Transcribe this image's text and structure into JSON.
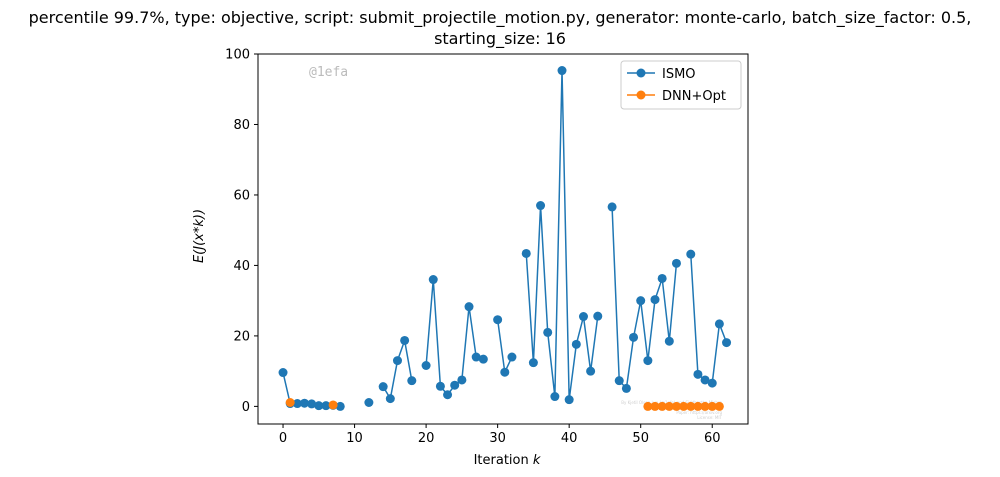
{
  "chart_data": {
    "type": "line",
    "title_line1": "percentile 99.7%, type: objective, script: submit_projectile_motion.py, generator: monte-carlo, batch_size_factor: 0.5,",
    "title_line2": "starting_size: 16",
    "xlabel": "Iteration k",
    "ylabel": "E(J(x*k))",
    "xlim": [
      -3.5,
      65
    ],
    "ylim": [
      -5,
      100
    ],
    "xticks": [
      0,
      10,
      20,
      30,
      40,
      50,
      60
    ],
    "yticks": [
      0,
      20,
      40,
      60,
      80,
      100
    ],
    "legend_position": "top-right",
    "watermark": "@1efa",
    "fineprint": [
      "By Kjetil Olsen Lye (@1efa) and Siddhartha Mishra",
      "Email: kjetil.lye@sam.math.ethz.ch",
      "Paper: https://arxiv.org",
      "License: MIT"
    ],
    "series": [
      {
        "name": "ISMO",
        "color": "#1f77b4",
        "segments": [
          {
            "x": [
              0,
              1,
              2,
              3,
              4,
              5,
              6,
              7,
              8
            ],
            "y": [
              9.6,
              0.8,
              0.8,
              0.9,
              0.7,
              0.2,
              0.2,
              0.3,
              0.0
            ]
          },
          {
            "x": [
              12
            ],
            "y": [
              1.1
            ]
          },
          {
            "x": [
              14,
              15,
              16,
              17,
              18
            ],
            "y": [
              5.6,
              2.2,
              13.0,
              18.7,
              7.3
            ]
          },
          {
            "x": [
              20,
              21,
              22,
              23,
              24,
              25,
              26,
              27,
              28
            ],
            "y": [
              11.6,
              36.0,
              5.7,
              3.3,
              6.0,
              7.5,
              28.3,
              14.0,
              13.4
            ]
          },
          {
            "x": [
              30,
              31,
              32
            ],
            "y": [
              24.6,
              9.7,
              14.0
            ]
          },
          {
            "x": [
              34,
              35,
              36,
              37,
              38,
              39,
              40,
              41,
              42,
              43,
              44
            ],
            "y": [
              43.4,
              12.4,
              57.0,
              21.0,
              2.8,
              95.3,
              1.9,
              17.6,
              25.5,
              10.0,
              25.6
            ]
          },
          {
            "x": [
              46,
              47,
              48,
              49,
              50,
              51,
              52,
              53,
              54,
              55
            ],
            "y": [
              56.6,
              7.3,
              5.1,
              19.6,
              30.0,
              13.0,
              30.3,
              36.3,
              18.5,
              40.6
            ]
          },
          {
            "x": [
              57,
              58,
              59,
              60,
              61,
              62
            ],
            "y": [
              43.2,
              9.1,
              7.5,
              6.6,
              23.4,
              18.1
            ]
          }
        ]
      },
      {
        "name": "DNN+Opt",
        "color": "#ff7f0e",
        "segments": [
          {
            "x": [
              1
            ],
            "y": [
              1.1
            ]
          },
          {
            "x": [
              7
            ],
            "y": [
              0.4
            ]
          },
          {
            "x": [
              51,
              52,
              53,
              54,
              55,
              56,
              57,
              58,
              59,
              60,
              61
            ],
            "y": [
              0,
              0,
              0,
              0,
              0,
              0,
              0,
              0,
              0,
              0,
              0
            ]
          }
        ]
      }
    ]
  }
}
